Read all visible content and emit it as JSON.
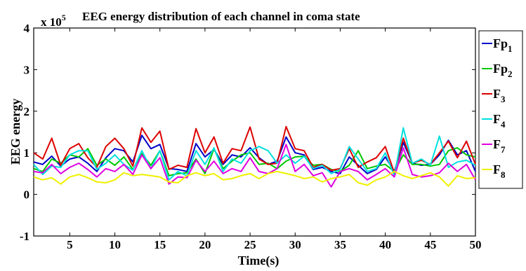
{
  "chart_data": {
    "type": "line",
    "title": "EEG energy distribution of each channel in coma state",
    "xlabel": "Time(s)",
    "ylabel": "EEG energy",
    "y_multiplier": "x 10",
    "y_multiplier_exponent": "5",
    "xlim": [
      1,
      50
    ],
    "ylim": [
      -1,
      4
    ],
    "x_ticks": [
      5,
      10,
      15,
      20,
      25,
      30,
      35,
      40,
      45,
      50
    ],
    "y_ticks": [
      -1,
      0,
      1,
      2,
      3,
      4
    ],
    "grid": false,
    "legend_position": "right",
    "x": [
      1,
      2,
      3,
      4,
      5,
      6,
      7,
      8,
      9,
      10,
      11,
      12,
      13,
      14,
      15,
      16,
      17,
      18,
      19,
      20,
      21,
      22,
      23,
      24,
      25,
      26,
      27,
      28,
      29,
      30,
      31,
      32,
      33,
      34,
      35,
      36,
      37,
      38,
      39,
      40,
      41,
      42,
      43,
      44,
      45,
      46,
      47,
      48,
      49,
      50
    ],
    "series": [
      {
        "name": "Fp",
        "sub": "1",
        "color": "#0000c8",
        "values": [
          0.78,
          0.72,
          0.92,
          0.68,
          0.85,
          0.9,
          0.75,
          0.55,
          0.88,
          1.1,
          1.05,
          0.78,
          1.42,
          1.1,
          1.2,
          0.62,
          0.6,
          0.55,
          1.22,
          0.9,
          1.08,
          0.72,
          0.95,
          0.9,
          1.12,
          0.88,
          0.72,
          0.8,
          1.38,
          1.0,
          0.95,
          0.6,
          0.65,
          0.55,
          0.5,
          0.9,
          0.7,
          0.5,
          0.6,
          0.9,
          0.55,
          1.25,
          0.75,
          0.7,
          0.72,
          0.95,
          1.3,
          0.95,
          1.05,
          0.55
        ]
      },
      {
        "name": "Fp",
        "sub": "2",
        "color": "#00c800",
        "values": [
          0.62,
          0.55,
          0.85,
          0.75,
          0.95,
          0.9,
          1.1,
          0.7,
          0.85,
          0.7,
          0.9,
          0.6,
          0.98,
          0.7,
          1.05,
          0.45,
          0.5,
          0.52,
          0.85,
          0.5,
          1.1,
          0.62,
          0.8,
          0.95,
          1.0,
          0.72,
          0.75,
          0.62,
          0.8,
          0.9,
          0.92,
          0.7,
          0.72,
          0.6,
          0.55,
          0.7,
          1.05,
          0.62,
          0.68,
          0.72,
          0.55,
          0.95,
          0.72,
          0.72,
          0.68,
          0.72,
          1.05,
          1.12,
          0.95,
          0.9
        ]
      },
      {
        "name": "F",
        "sub": "3",
        "color": "#dc0000",
        "values": [
          1.0,
          0.85,
          1.35,
          0.7,
          1.1,
          1.22,
          0.88,
          0.65,
          1.15,
          1.35,
          1.1,
          0.68,
          1.6,
          1.25,
          1.52,
          0.6,
          0.7,
          0.65,
          1.58,
          1.0,
          1.38,
          0.75,
          1.1,
          1.05,
          1.62,
          0.85,
          0.72,
          0.75,
          1.63,
          1.1,
          1.05,
          0.65,
          0.72,
          0.58,
          0.62,
          1.1,
          0.65,
          0.78,
          0.88,
          1.15,
          0.52,
          1.35,
          0.75,
          0.82,
          0.72,
          1.0,
          1.28,
          0.88,
          1.28,
          0.72
        ]
      },
      {
        "name": "F",
        "sub": "4",
        "color": "#00e0e0",
        "values": [
          0.72,
          0.48,
          0.68,
          0.65,
          0.95,
          1.05,
          1.05,
          0.6,
          0.75,
          0.95,
          0.72,
          0.58,
          1.05,
          0.62,
          1.05,
          0.35,
          0.55,
          0.45,
          1.05,
          0.72,
          1.12,
          0.55,
          0.85,
          0.75,
          1.05,
          1.15,
          1.05,
          0.75,
          0.95,
          0.75,
          0.92,
          0.62,
          0.7,
          0.5,
          0.6,
          1.15,
          0.85,
          0.55,
          0.62,
          1.0,
          0.45,
          1.6,
          0.75,
          0.85,
          0.7,
          1.4,
          0.65,
          0.78,
          0.82,
          0.7
        ]
      },
      {
        "name": "F",
        "sub": "7",
        "color": "#e000e0",
        "values": [
          0.55,
          0.52,
          0.72,
          0.5,
          0.65,
          0.75,
          0.6,
          0.42,
          0.62,
          0.55,
          0.72,
          0.48,
          0.95,
          0.62,
          0.88,
          0.25,
          0.42,
          0.4,
          0.82,
          0.55,
          0.8,
          0.5,
          0.62,
          0.55,
          0.88,
          0.55,
          0.5,
          0.62,
          1.2,
          0.55,
          0.72,
          0.45,
          0.52,
          0.18,
          0.55,
          0.62,
          0.55,
          0.35,
          0.48,
          0.62,
          0.42,
          1.12,
          0.48,
          0.42,
          0.45,
          0.52,
          0.75,
          0.55,
          0.72,
          0.35
        ]
      },
      {
        "name": "F",
        "sub": "8",
        "color": "#f0f000",
        "values": [
          0.42,
          0.35,
          0.4,
          0.25,
          0.42,
          0.48,
          0.4,
          0.3,
          0.28,
          0.35,
          0.52,
          0.45,
          0.48,
          0.45,
          0.42,
          0.3,
          0.28,
          0.45,
          0.52,
          0.45,
          0.5,
          0.35,
          0.38,
          0.45,
          0.5,
          0.38,
          0.5,
          0.55,
          0.5,
          0.45,
          0.38,
          0.42,
          0.3,
          0.38,
          0.42,
          0.48,
          0.28,
          0.22,
          0.35,
          0.42,
          0.55,
          0.45,
          0.38,
          0.45,
          0.52,
          0.42,
          0.2,
          0.45,
          0.38,
          0.4
        ]
      }
    ]
  }
}
